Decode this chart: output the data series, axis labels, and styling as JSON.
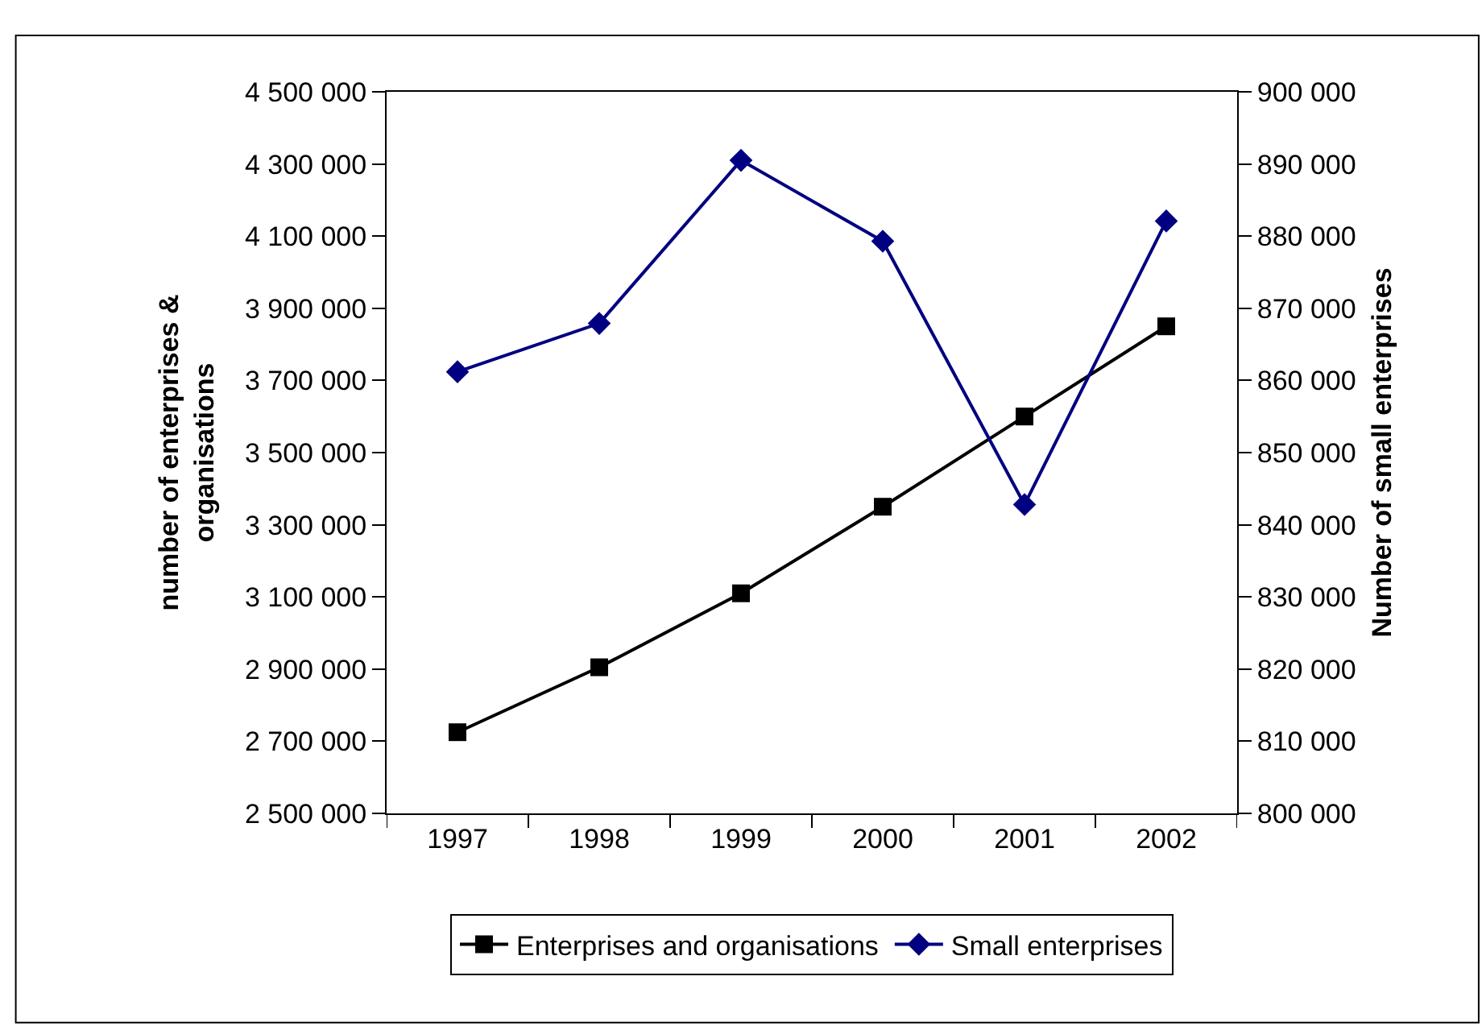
{
  "chart_data": {
    "type": "line",
    "categories": [
      "1997",
      "1998",
      "1999",
      "2000",
      "2001",
      "2002"
    ],
    "ylabel": "number of enterprises &\norganisations",
    "y2label": "Number of small enterprises",
    "series": [
      {
        "name": "Enterprises and organisations",
        "color": "#000000",
        "marker": "square",
        "values": [
          2725000,
          2905000,
          3110000,
          3350000,
          3600000,
          3850000
        ]
      },
      {
        "name": "Small enterprises",
        "color": "#000080",
        "marker": "diamond",
        "axis": "y2",
        "values": [
          861200,
          867900,
          890500,
          879300,
          842800,
          882100
        ]
      }
    ],
    "ylim": [
      2500000,
      4500000
    ],
    "yticks": [
      {
        "value": 2500000,
        "label": "2 500 000"
      },
      {
        "value": 2700000,
        "label": "2 700 000"
      },
      {
        "value": 2900000,
        "label": "2 900 000"
      },
      {
        "value": 3100000,
        "label": "3 100 000"
      },
      {
        "value": 3300000,
        "label": "3 300 000"
      },
      {
        "value": 3500000,
        "label": "3 500 000"
      },
      {
        "value": 3700000,
        "label": "3 700 000"
      },
      {
        "value": 3900000,
        "label": "3 900 000"
      },
      {
        "value": 4100000,
        "label": "4 100 000"
      },
      {
        "value": 4300000,
        "label": "4 300 000"
      },
      {
        "value": 4500000,
        "label": "4 500 000"
      }
    ],
    "y2lim": [
      800000,
      900000
    ],
    "y2ticks": [
      {
        "value": 800000,
        "label": "800 000"
      },
      {
        "value": 810000,
        "label": "810 000"
      },
      {
        "value": 820000,
        "label": "820 000"
      },
      {
        "value": 830000,
        "label": "830 000"
      },
      {
        "value": 840000,
        "label": "840 000"
      },
      {
        "value": 850000,
        "label": "850 000"
      },
      {
        "value": 860000,
        "label": "860 000"
      },
      {
        "value": 870000,
        "label": "870 000"
      },
      {
        "value": 880000,
        "label": "880 000"
      },
      {
        "value": 890000,
        "label": "890 000"
      },
      {
        "value": 900000,
        "label": "900 000"
      }
    ],
    "grid": false,
    "legend": "bottom",
    "line_style": "solid"
  }
}
